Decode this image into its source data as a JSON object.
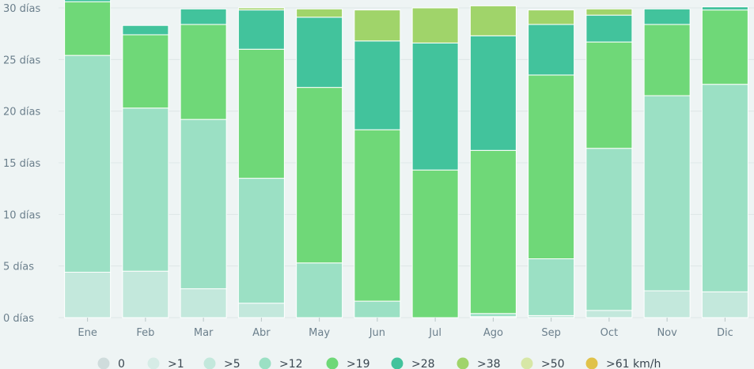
{
  "chart_data": {
    "type": "bar",
    "stacked": true,
    "categories": [
      "Ene",
      "Feb",
      "Mar",
      "Abr",
      "May",
      "Jun",
      "Jul",
      "Ago",
      "Sep",
      "Oct",
      "Nov",
      "Dic"
    ],
    "ylim": [
      0,
      30
    ],
    "yticks": [
      0,
      5,
      10,
      15,
      20,
      25,
      30
    ],
    "ytick_labels": [
      "0 días",
      "5 días",
      "10 días",
      "15 días",
      "20 días",
      "25 días",
      "30 días"
    ],
    "grid": true,
    "legend_position": "bottom",
    "series": [
      {
        "name": "0",
        "color": "#cfdcdc",
        "values": [
          0,
          0,
          0,
          0,
          0,
          0,
          0,
          0,
          0,
          0,
          0,
          0
        ]
      },
      {
        "name": ">1",
        "color": "#d6ece6",
        "values": [
          0,
          0,
          0,
          0,
          0,
          0,
          0,
          0,
          0,
          0,
          0,
          0
        ]
      },
      {
        "name": ">5",
        "color": "#c3e8dc",
        "values": [
          4.4,
          4.5,
          2.8,
          1.4,
          0,
          0,
          0,
          0.1,
          0.2,
          0.7,
          2.6,
          2.5
        ]
      },
      {
        "name": ">12",
        "color": "#9be0c4",
        "values": [
          21.0,
          15.8,
          16.4,
          12.1,
          5.3,
          1.6,
          0,
          0.3,
          5.5,
          15.7,
          18.9,
          20.1
        ]
      },
      {
        "name": ">19",
        "color": "#6fd878",
        "values": [
          5.2,
          7.1,
          9.2,
          12.5,
          17.0,
          16.6,
          14.3,
          15.8,
          17.8,
          10.3,
          6.9,
          7.2
        ]
      },
      {
        "name": ">28",
        "color": "#42c39c",
        "values": [
          0.4,
          0.9,
          1.5,
          3.8,
          6.8,
          8.6,
          12.3,
          11.1,
          4.9,
          2.6,
          1.5,
          0.3
        ]
      },
      {
        "name": ">38",
        "color": "#a0d46a",
        "values": [
          0,
          0,
          0,
          0.2,
          0.8,
          3.0,
          3.4,
          2.9,
          1.4,
          0.6,
          0,
          0
        ]
      },
      {
        "name": ">50",
        "color": "#d7e7a6",
        "values": [
          0,
          0,
          0,
          0,
          0,
          0,
          0,
          0,
          0,
          0,
          0,
          0
        ]
      },
      {
        "name": ">61 km/h",
        "color": "#e0c24a",
        "values": [
          0,
          0,
          0,
          0,
          0,
          0,
          0,
          0,
          0,
          0,
          0,
          0
        ]
      }
    ]
  }
}
